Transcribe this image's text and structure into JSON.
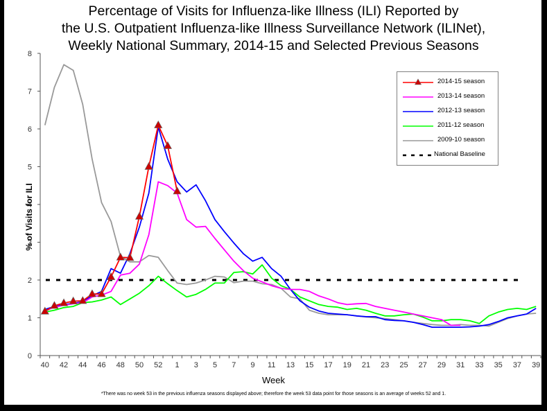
{
  "chart_data": {
    "type": "line",
    "title": [
      "Percentage of Visits for Influenza-like Illness (ILI) Reported by",
      "the U.S. Outpatient Influenza-like Illness Surveillance Network (ILINet),",
      "Weekly National Summary, 2014-15 and Selected Previous Seasons"
    ],
    "xlabel": "Week",
    "ylabel": "% of Visits for ILI",
    "ylim": [
      0,
      8
    ],
    "yticks": [
      "0",
      "1",
      "2",
      "3",
      "4",
      "5",
      "6",
      "7",
      "8"
    ],
    "weeks": [
      40,
      41,
      42,
      43,
      44,
      45,
      46,
      47,
      48,
      49,
      50,
      51,
      52,
      53,
      1,
      2,
      3,
      4,
      5,
      6,
      7,
      8,
      9,
      10,
      11,
      12,
      13,
      14,
      15,
      16,
      17,
      18,
      19,
      20,
      21,
      22,
      23,
      24,
      25,
      26,
      27,
      28,
      29,
      30,
      31,
      32,
      33,
      34,
      35,
      36,
      37,
      38,
      39
    ],
    "xtick_labels": [
      "40",
      "42",
      "44",
      "46",
      "48",
      "50",
      "52",
      "1",
      "3",
      "5",
      "7",
      "9",
      "11",
      "13",
      "15",
      "17",
      "19",
      "21",
      "23",
      "25",
      "27",
      "29",
      "31",
      "33",
      "35",
      "37",
      "39"
    ],
    "legend_position": "top-right",
    "series": [
      {
        "name": "2014-15 season",
        "color": "#ff0000",
        "marker": "triangle",
        "values": [
          1.17,
          1.32,
          1.39,
          1.44,
          1.45,
          1.63,
          1.63,
          2.08,
          2.6,
          2.59,
          3.68,
          5.0,
          6.1,
          5.55,
          4.35
        ]
      },
      {
        "name": "2013-14 season",
        "color": "#ff00ff",
        "values": [
          1.18,
          1.28,
          1.33,
          1.37,
          1.4,
          1.55,
          1.6,
          1.7,
          2.13,
          2.18,
          2.42,
          3.2,
          4.6,
          4.5,
          4.3,
          3.6,
          3.4,
          3.42,
          3.1,
          2.8,
          2.5,
          2.25,
          2.05,
          1.95,
          1.85,
          1.78,
          1.75,
          1.75,
          1.7,
          1.58,
          1.5,
          1.4,
          1.35,
          1.37,
          1.38,
          1.3,
          1.25,
          1.2,
          1.15,
          1.1,
          1.05,
          1.0,
          0.95,
          0.8,
          0.8,
          null,
          null,
          null,
          null,
          null,
          null,
          null,
          null
        ]
      },
      {
        "name": "2012-13 season",
        "color": "#0000ff",
        "values": [
          1.22,
          1.3,
          1.35,
          1.38,
          1.43,
          1.58,
          1.7,
          2.3,
          2.18,
          2.7,
          3.4,
          4.3,
          6.05,
          5.2,
          4.6,
          4.33,
          4.52,
          4.1,
          3.6,
          3.28,
          2.98,
          2.7,
          2.5,
          2.6,
          2.3,
          2.1,
          1.75,
          1.45,
          1.28,
          1.18,
          1.12,
          1.1,
          1.08,
          1.05,
          1.03,
          1.03,
          0.95,
          0.93,
          0.92,
          0.88,
          0.82,
          0.75,
          0.75,
          0.75,
          0.75,
          0.76,
          0.78,
          0.82,
          0.9,
          1.0,
          1.05,
          1.1,
          1.25
        ]
      },
      {
        "name": "2011-12 season",
        "color": "#00ff00",
        "values": [
          1.15,
          1.2,
          1.27,
          1.3,
          1.4,
          1.42,
          1.47,
          1.55,
          1.35,
          1.5,
          1.65,
          1.85,
          2.1,
          1.9,
          1.72,
          1.55,
          1.62,
          1.75,
          1.92,
          1.92,
          2.2,
          2.22,
          2.16,
          2.4,
          2.05,
          1.85,
          1.75,
          1.55,
          1.45,
          1.35,
          1.3,
          1.28,
          1.22,
          1.25,
          1.2,
          1.12,
          1.05,
          1.05,
          1.08,
          1.1,
          1.02,
          0.92,
          0.92,
          0.95,
          0.95,
          0.92,
          0.85,
          1.05,
          1.15,
          1.22,
          1.25,
          1.22,
          1.3
        ]
      },
      {
        "name": "2009-10 season",
        "color": "#999999",
        "values": [
          6.1,
          7.1,
          7.7,
          7.55,
          6.65,
          5.2,
          4.05,
          3.55,
          2.62,
          2.48,
          2.48,
          2.65,
          2.6,
          2.25,
          1.92,
          1.88,
          1.92,
          2.0,
          2.1,
          2.08,
          1.93,
          1.97,
          1.97,
          1.9,
          1.88,
          1.78,
          1.55,
          1.5,
          1.2,
          1.12,
          1.08,
          1.08,
          1.08,
          1.05,
          1.02,
          1.0,
          0.98,
          0.95,
          0.92,
          0.88,
          0.85,
          0.82,
          0.8,
          0.8,
          0.82,
          0.8,
          0.8,
          0.78,
          0.88,
          0.98,
          1.05,
          1.1,
          1.12
        ]
      },
      {
        "name": "National Baseline",
        "color": "#000000",
        "style": "dashed",
        "values_constant": 2.0
      }
    ],
    "footnote": "*There was no week 53 in the previous influenza seasons displayed above; therefore the week 53 data point for those seasons is an average of weeks 52 and 1."
  }
}
